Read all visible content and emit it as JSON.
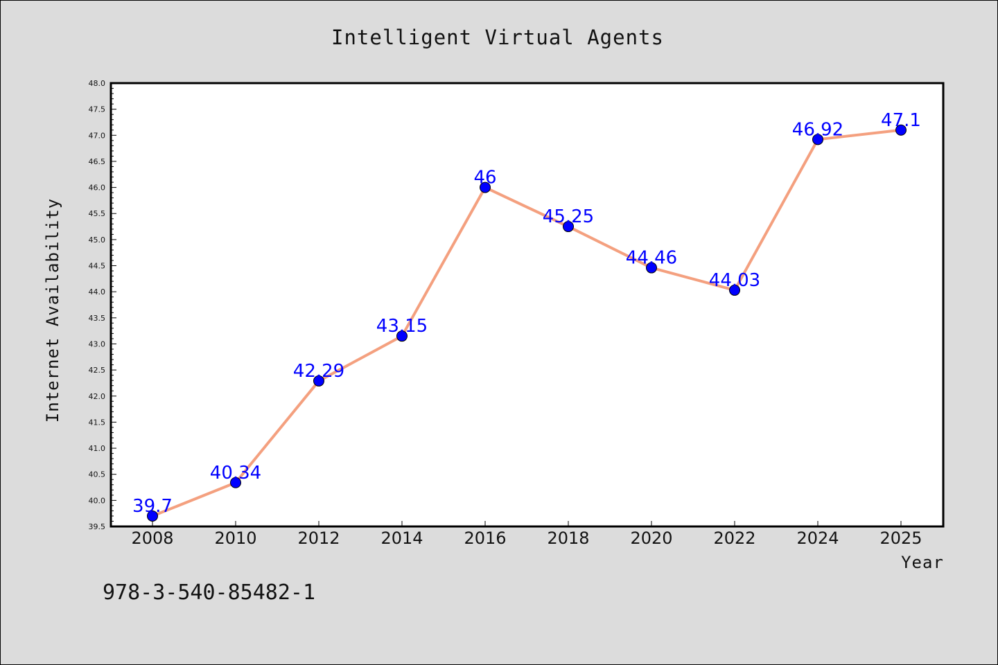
{
  "chart_data": {
    "type": "line",
    "title": "Intelligent Virtual Agents",
    "xlabel": "Year",
    "ylabel": "Internet Availability",
    "categories": [
      "2008",
      "2010",
      "2012",
      "2014",
      "2016",
      "2018",
      "2020",
      "2022",
      "2024",
      "2025"
    ],
    "values": [
      39.7,
      40.34,
      42.29,
      43.15,
      46,
      45.25,
      44.46,
      44.03,
      46.92,
      47.1
    ],
    "data_labels": [
      "39.7",
      "40.34",
      "42.29",
      "43.15",
      "46",
      "45.25",
      "44.46",
      "44.03",
      "46.92",
      "47.1"
    ],
    "ylim": [
      39.5,
      48.0
    ],
    "yticks": [
      "39.5",
      "40.0",
      "40.5",
      "41.0",
      "41.5",
      "42.0",
      "42.5",
      "43.0",
      "43.5",
      "44.0",
      "44.5",
      "45.0",
      "45.5",
      "46.0",
      "46.5",
      "47.0",
      "47.5",
      "48.0"
    ],
    "grid": false,
    "line_color": "#f4a07f",
    "marker_color": "#0000ff",
    "label_color": "#0000ff"
  },
  "footer": {
    "text": "978-3-540-85482-1"
  }
}
